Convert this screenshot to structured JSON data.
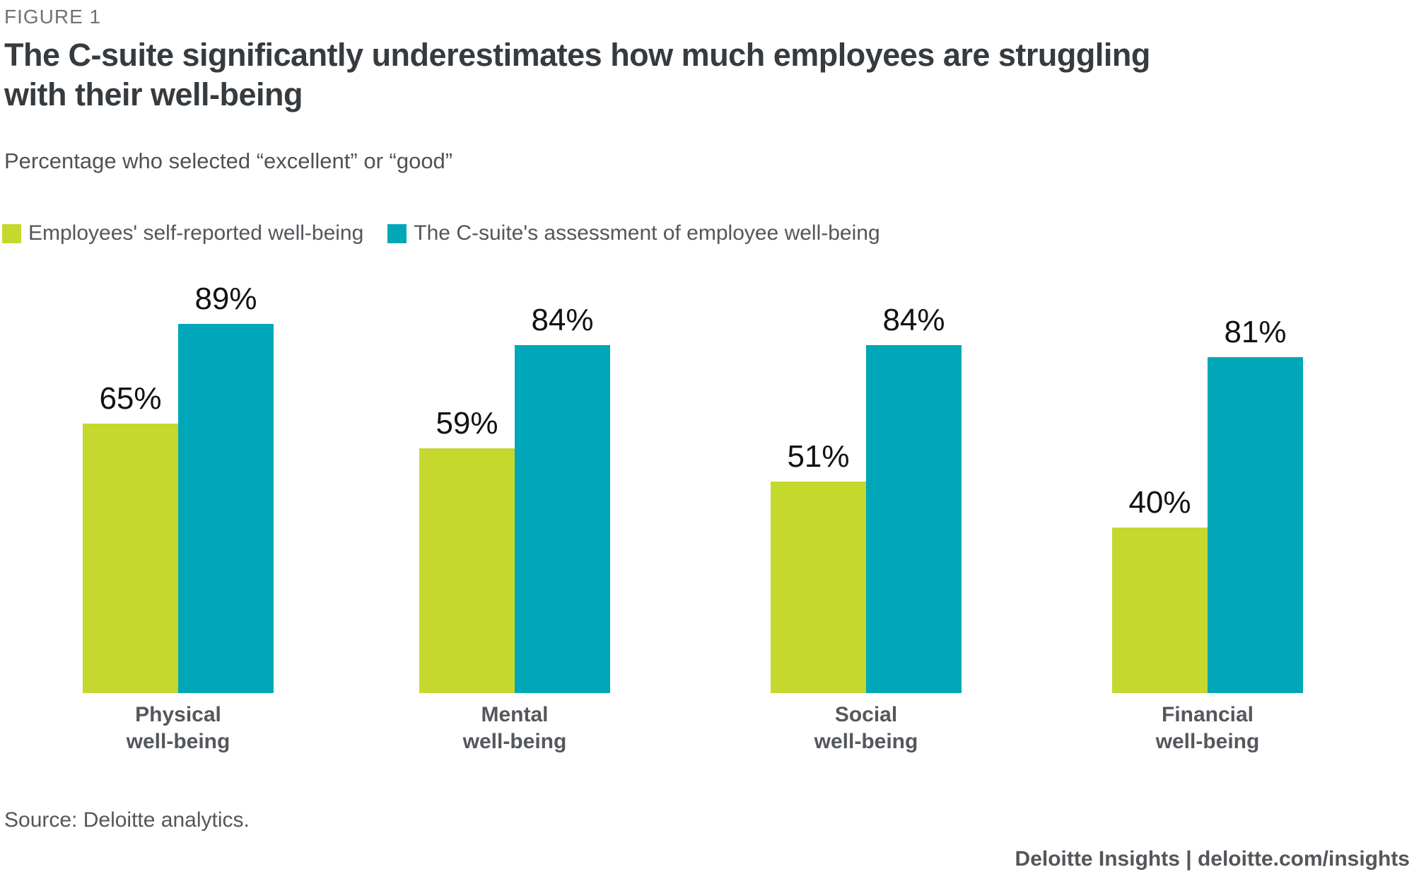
{
  "figure_label": "FIGURE 1",
  "title": {
    "line1": "The C-suite significantly underestimates how much employees are struggling",
    "line2": "with their well-being"
  },
  "subtitle": "Percentage who selected “excellent” or “good”",
  "legend": [
    {
      "label": "Employees' self-reported well-being",
      "color": "#c4d82d"
    },
    {
      "label": "The C-suite's assessment of employee well-being",
      "color": "#00a7b8"
    }
  ],
  "chart_data": {
    "type": "bar",
    "title": "The C-suite significantly underestimates how much employees are struggling with their well-being",
    "subtitle": "Percentage who selected “excellent” or “good”",
    "categories": [
      "Physical well-being",
      "Mental well-being",
      "Social well-being",
      "Financial well-being"
    ],
    "series": [
      {
        "name": "Employees' self-reported well-being",
        "color": "#c4d82d",
        "values": [
          65,
          59,
          51,
          40
        ]
      },
      {
        "name": "The C-suite's assessment of employee well-being",
        "color": "#00a7b8",
        "values": [
          89,
          84,
          84,
          81
        ]
      }
    ],
    "value_label_format": "percent",
    "xlabel": "",
    "ylabel": "",
    "ylim": [
      0,
      100
    ],
    "grid": false,
    "axis_lines": false,
    "legend_position": "top-left"
  },
  "groups": [
    {
      "category_line1": "Physical",
      "category_line2": "well-being",
      "employee_label": "65%",
      "csuite_label": "89%"
    },
    {
      "category_line1": "Mental",
      "category_line2": "well-being",
      "employee_label": "59%",
      "csuite_label": "84%"
    },
    {
      "category_line1": "Social",
      "category_line2": "well-being",
      "employee_label": "51%",
      "csuite_label": "84%"
    },
    {
      "category_line1": "Financial",
      "category_line2": "well-being",
      "employee_label": "40%",
      "csuite_label": "81%"
    }
  ],
  "footer": {
    "source": "Source: Deloitte analytics.",
    "brand": "Deloitte Insights | deloitte.com/insights"
  }
}
